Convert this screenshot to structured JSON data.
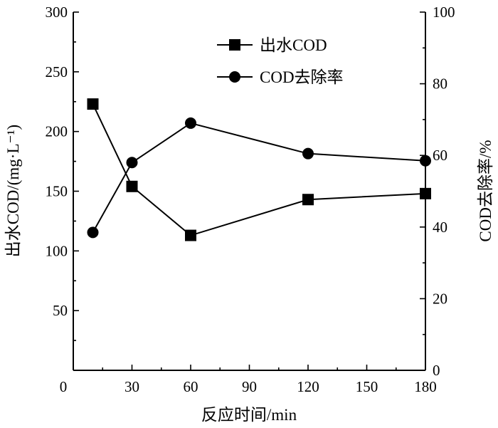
{
  "chart_data": {
    "type": "line",
    "dual_axis": true,
    "x": [
      10,
      30,
      60,
      120,
      180
    ],
    "xlabel": "反应时间/min",
    "xlim": [
      0,
      180
    ],
    "xticks": [
      0,
      30,
      60,
      90,
      120,
      150,
      180
    ],
    "y_left": {
      "label": "出水COD/(mg·L⁻¹)",
      "lim": [
        0,
        300
      ],
      "ticks": [
        50,
        100,
        150,
        200,
        250,
        300
      ]
    },
    "y_right": {
      "label": "COD去除率/%",
      "lim": [
        0,
        100
      ],
      "ticks": [
        0,
        20,
        40,
        60,
        80,
        100
      ]
    },
    "series": [
      {
        "name": "出水COD",
        "axis": "left",
        "marker": "square",
        "values": [
          223,
          154,
          113,
          143,
          148
        ]
      },
      {
        "name": "COD去除率",
        "axis": "right",
        "marker": "circle",
        "values": [
          38.5,
          58,
          69,
          60.5,
          58.5
        ]
      }
    ],
    "legend_position": "top-right",
    "grid": false,
    "colors": {
      "line": "#000000",
      "marker": "#000000"
    }
  }
}
